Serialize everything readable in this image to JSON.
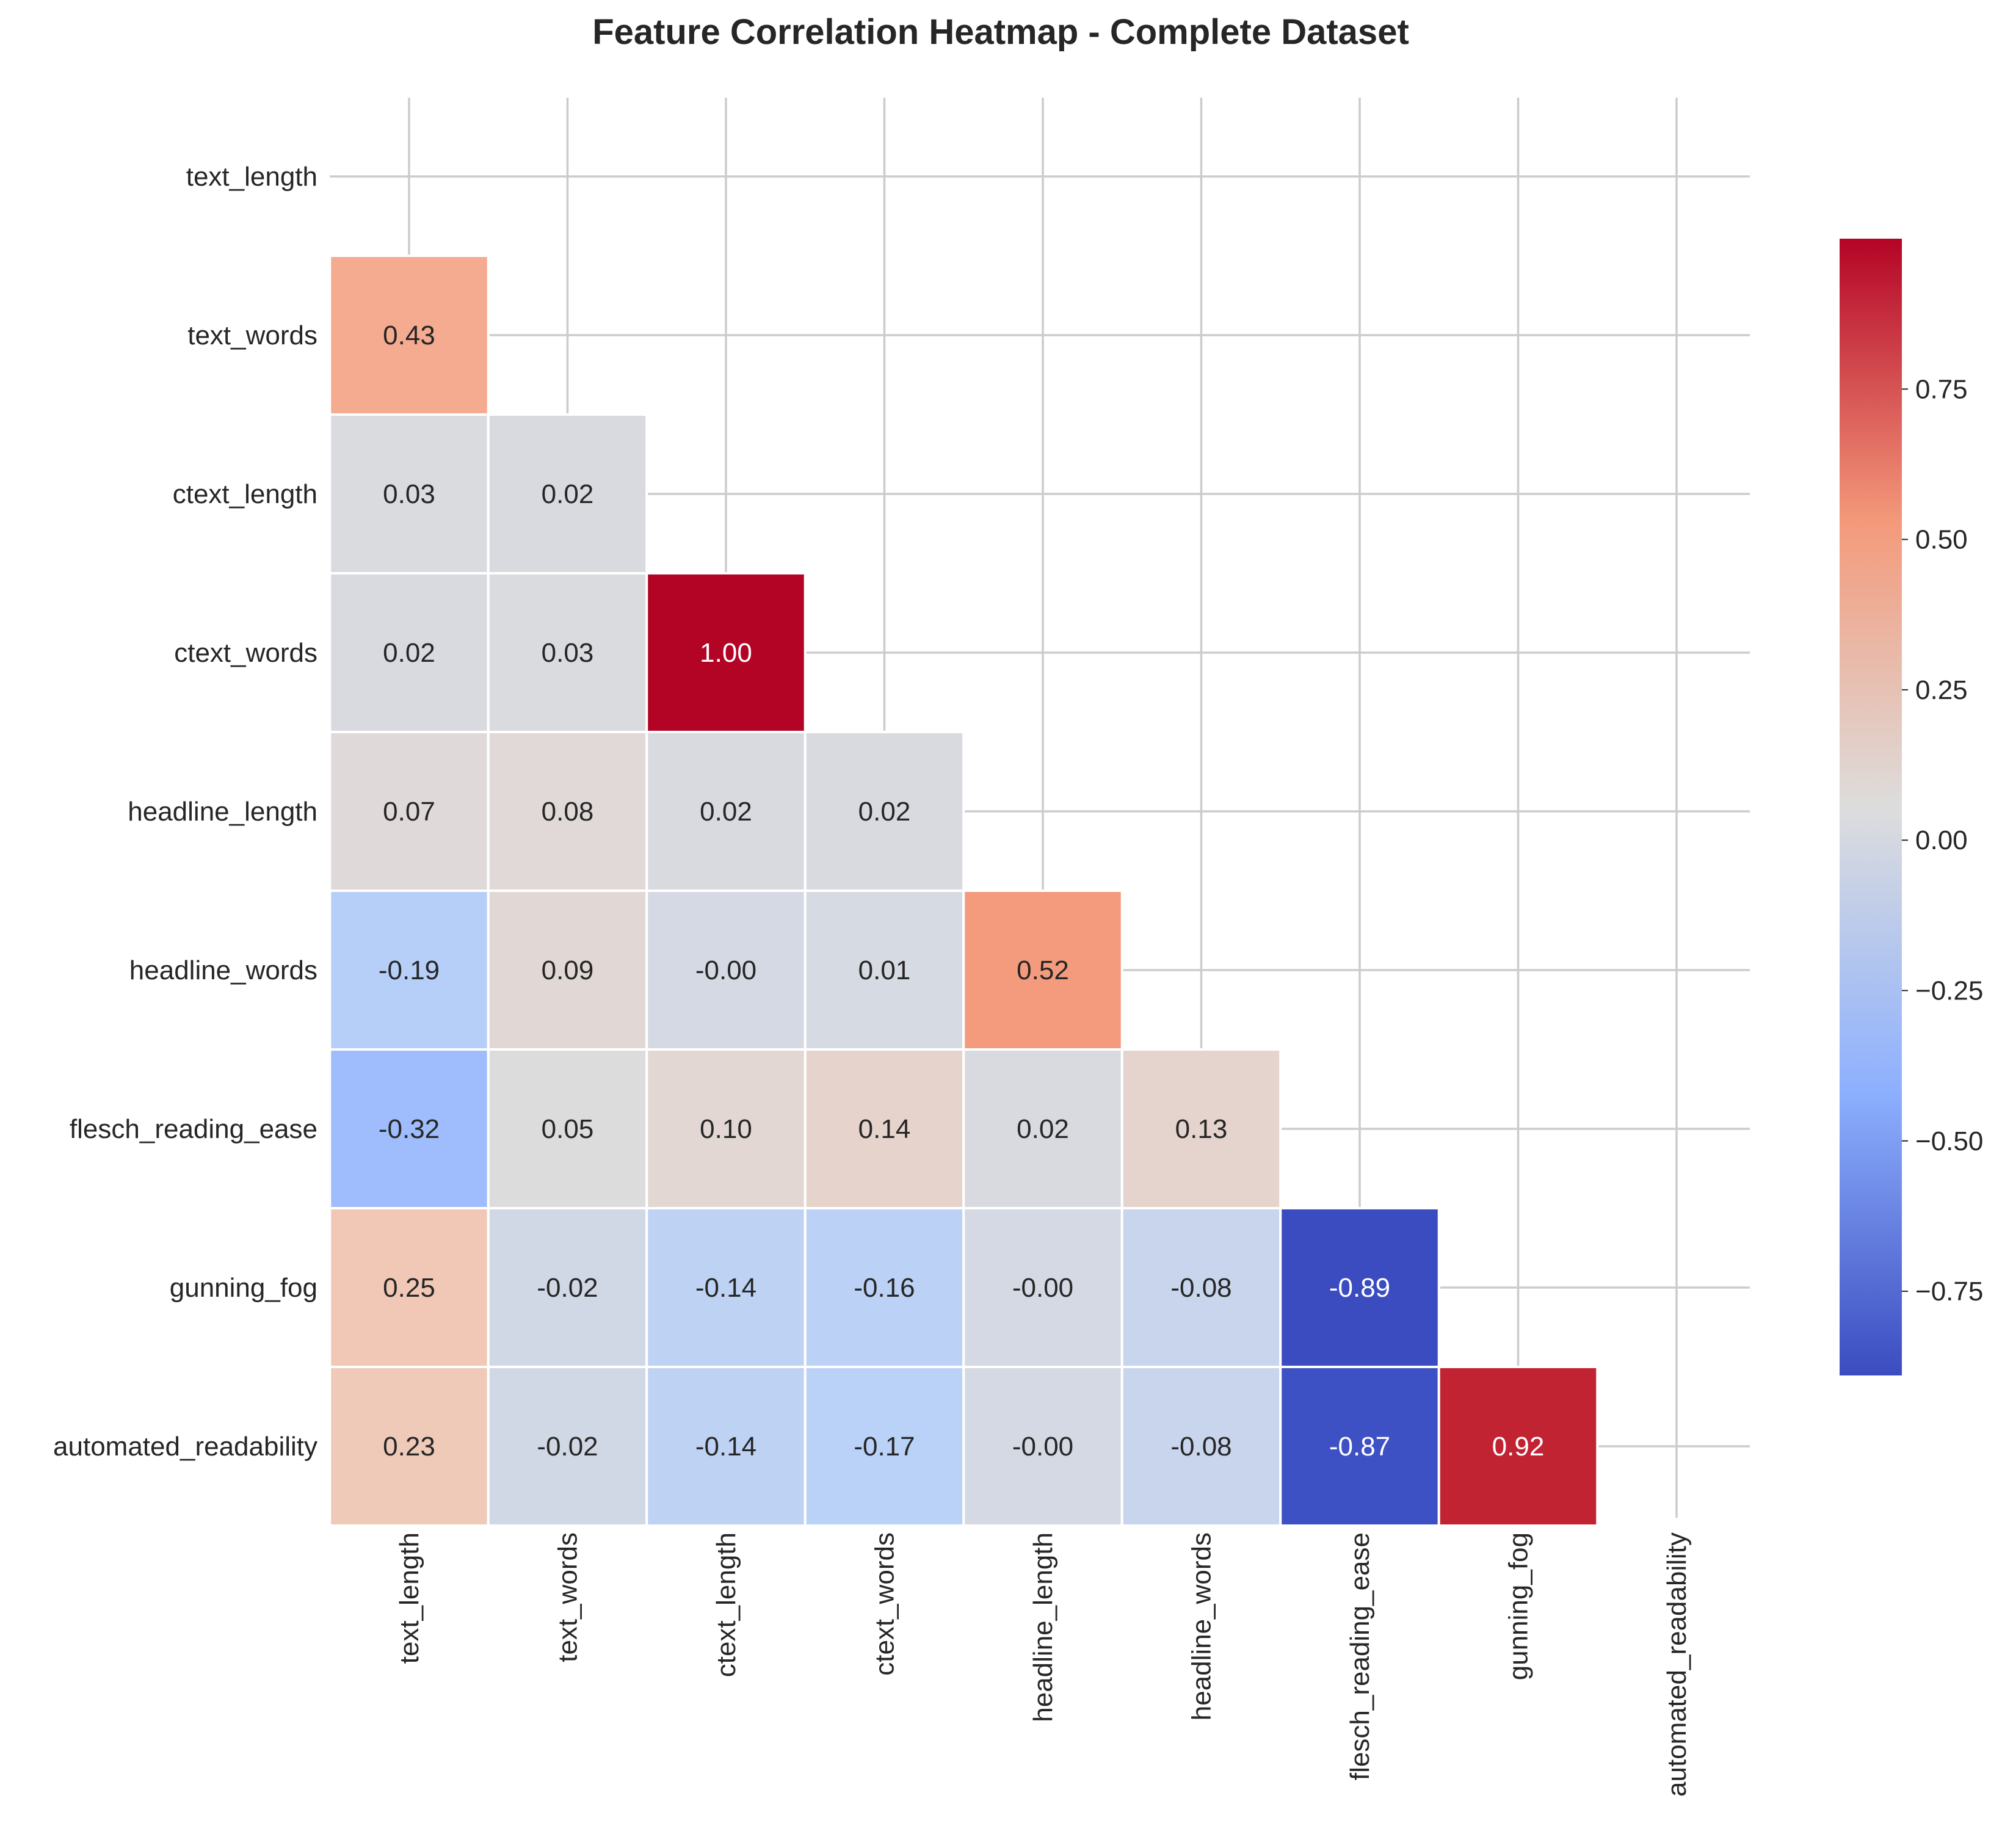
{
  "chart_data": {
    "type": "heatmap",
    "title": "Feature Correlation Heatmap - Complete Dataset",
    "features": [
      "text_length",
      "text_words",
      "ctext_length",
      "ctext_words",
      "headline_length",
      "headline_words",
      "flesch_reading_ease",
      "gunning_fog",
      "automated_readability"
    ],
    "mask": "upper-triangle-including-diagonal",
    "values": [
      [
        null,
        null,
        null,
        null,
        null,
        null,
        null,
        null,
        null
      ],
      [
        0.43,
        null,
        null,
        null,
        null,
        null,
        null,
        null,
        null
      ],
      [
        0.03,
        0.02,
        null,
        null,
        null,
        null,
        null,
        null,
        null
      ],
      [
        0.02,
        0.03,
        1.0,
        null,
        null,
        null,
        null,
        null,
        null
      ],
      [
        0.07,
        0.08,
        0.02,
        0.02,
        null,
        null,
        null,
        null,
        null
      ],
      [
        -0.19,
        0.09,
        -0.0,
        0.01,
        0.52,
        null,
        null,
        null,
        null
      ],
      [
        -0.32,
        0.05,
        0.1,
        0.14,
        0.02,
        0.13,
        null,
        null,
        null
      ],
      [
        0.25,
        -0.02,
        -0.14,
        -0.16,
        -0.0,
        -0.08,
        -0.89,
        null,
        null
      ],
      [
        0.23,
        -0.02,
        -0.14,
        -0.17,
        -0.0,
        -0.08,
        -0.87,
        0.92,
        null
      ]
    ],
    "labels": [
      [
        "",
        "",
        "",
        "",
        "",
        "",
        "",
        "",
        ""
      ],
      [
        "0.43",
        "",
        "",
        "",
        "",
        "",
        "",
        "",
        ""
      ],
      [
        "0.03",
        "0.02",
        "",
        "",
        "",
        "",
        "",
        "",
        ""
      ],
      [
        "0.02",
        "0.03",
        "1.00",
        "",
        "",
        "",
        "",
        "",
        ""
      ],
      [
        "0.07",
        "0.08",
        "0.02",
        "0.02",
        "",
        "",
        "",
        "",
        ""
      ],
      [
        "-0.19",
        "0.09",
        "-0.00",
        "0.01",
        "0.52",
        "",
        "",
        "",
        ""
      ],
      [
        "-0.32",
        "0.05",
        "0.10",
        "0.14",
        "0.02",
        "0.13",
        "",
        "",
        ""
      ],
      [
        "0.25",
        "-0.02",
        "-0.14",
        "-0.16",
        "-0.00",
        "-0.08",
        "-0.89",
        "",
        ""
      ],
      [
        "0.23",
        "-0.02",
        "-0.14",
        "-0.17",
        "-0.00",
        "-0.08",
        "-0.87",
        "0.92",
        ""
      ]
    ],
    "colormap": "coolwarm",
    "colorbar": {
      "vmin": -0.89,
      "vmax": 1.0,
      "ticks": [
        0.75,
        0.5,
        0.25,
        0.0,
        -0.25,
        -0.5,
        -0.75
      ],
      "tick_labels": [
        "0.75",
        "0.50",
        "0.25",
        "0.00",
        "−0.25",
        "−0.50",
        "−0.75"
      ]
    },
    "grid": true,
    "colors": {
      "grid": "#cccccc",
      "text_dark": "#262626",
      "text_light": "#ffffff",
      "cell_border": "#ffffff"
    }
  }
}
